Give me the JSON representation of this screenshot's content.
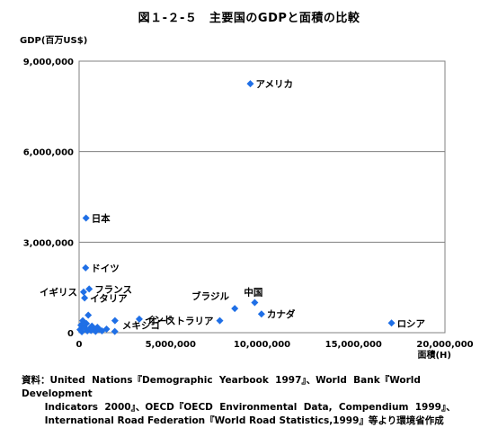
{
  "figure": {
    "title": "図１-２-５　主要国のGDPと面積の比較",
    "source": "資料：United  Nations『Demographic  Yearbook  1997』、World  Bank『World  Development\n       Indicators  2000』、OECD『OECD  Environmental  Data,  Compendium  1999』、\n       International Road Federation『World Road Statistics,1999』等より環境省作成"
  },
  "chart_data": {
    "type": "scatter",
    "title": "図１-２-５　主要国のGDPと面積の比較",
    "xlabel": "面積(H)",
    "ylabel": "GDP(百万US$)",
    "xlim": [
      0,
      20000000
    ],
    "ylim": [
      0,
      9000000
    ],
    "xticks": [
      0,
      5000000,
      10000000,
      15000000,
      20000000
    ],
    "yticks": [
      0,
      3000000,
      6000000,
      9000000
    ],
    "xtick_labels": [
      "0",
      "5,000,000",
      "10,000,000",
      "15,000,000",
      "20,000,000"
    ],
    "ytick_labels": [
      "0",
      "3,000,000",
      "6,000,000",
      "9,000,000"
    ],
    "grid": "horizontal",
    "marker_color": "#1f6fe6",
    "labeled_points": [
      {
        "label": "アメリカ",
        "x": 9360000,
        "y": 8250000,
        "label_side": "right"
      },
      {
        "label": "日本",
        "x": 378000,
        "y": 3800000,
        "label_side": "right"
      },
      {
        "label": "ドイツ",
        "x": 357000,
        "y": 2150000,
        "label_side": "right"
      },
      {
        "label": "フランス",
        "x": 550000,
        "y": 1450000,
        "label_side": "right"
      },
      {
        "label": "イギリス",
        "x": 244000,
        "y": 1350000,
        "label_side": "left"
      },
      {
        "label": "イタリア",
        "x": 301000,
        "y": 1150000,
        "label_side": "right"
      },
      {
        "label": "インド",
        "x": 3290000,
        "y": 450000,
        "label_side": "right"
      },
      {
        "label": "メキシコ",
        "x": 1960000,
        "y": 400000,
        "label_side": "below-right"
      },
      {
        "label": "ブラジル",
        "x": 8510000,
        "y": 800000,
        "label_side": "above-left"
      },
      {
        "label": "中国",
        "x": 9600000,
        "y": 1000000,
        "label_side": "above"
      },
      {
        "label": "カナダ",
        "x": 9970000,
        "y": 620000,
        "label_side": "right"
      },
      {
        "label": "オーストラリア",
        "x": 7690000,
        "y": 400000,
        "label_side": "left"
      },
      {
        "label": "ロシア",
        "x": 17080000,
        "y": 320000,
        "label_side": "right"
      }
    ],
    "unlabeled_points": [
      {
        "x": 50000,
        "y": 100000
      },
      {
        "x": 100000,
        "y": 250000
      },
      {
        "x": 200000,
        "y": 400000
      },
      {
        "x": 300000,
        "y": 180000
      },
      {
        "x": 450000,
        "y": 60000
      },
      {
        "x": 500000,
        "y": 580000
      },
      {
        "x": 600000,
        "y": 150000
      },
      {
        "x": 700000,
        "y": 220000
      },
      {
        "x": 780000,
        "y": 100000
      },
      {
        "x": 900000,
        "y": 40000
      },
      {
        "x": 1000000,
        "y": 180000
      },
      {
        "x": 1100000,
        "y": 110000
      },
      {
        "x": 1250000,
        "y": 60000
      },
      {
        "x": 1500000,
        "y": 120000
      },
      {
        "x": 1950000,
        "y": 40000
      },
      {
        "x": 150000,
        "y": 30000
      },
      {
        "x": 400000,
        "y": 300000
      },
      {
        "x": 650000,
        "y": 70000
      }
    ]
  }
}
